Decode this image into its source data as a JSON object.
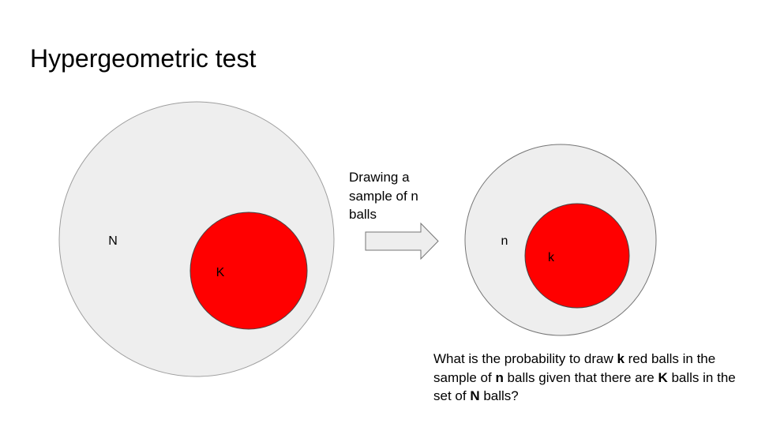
{
  "slide": {
    "title": "Hypergeometric test"
  },
  "diagram": {
    "population": {
      "label": "N",
      "fill": "#eeeeee",
      "stroke": "#9e9e9e"
    },
    "population_successes": {
      "label": "K",
      "fill": "#ff0000",
      "stroke": "#444444"
    },
    "sample": {
      "label": "n",
      "fill": "#eeeeee",
      "stroke": "#757575"
    },
    "sample_successes": {
      "label": "k",
      "fill": "#ff0000",
      "stroke": "#444444"
    },
    "arrow": {
      "caption": "Drawing a sample of n balls",
      "fill": "#eeeeee",
      "stroke": "#757575"
    }
  },
  "question": {
    "parts": [
      "What is the probability to draw ",
      "k",
      " red balls in the sample of ",
      "n",
      " balls given that there are ",
      "K",
      " balls in the set of ",
      "N",
      " balls?"
    ]
  }
}
